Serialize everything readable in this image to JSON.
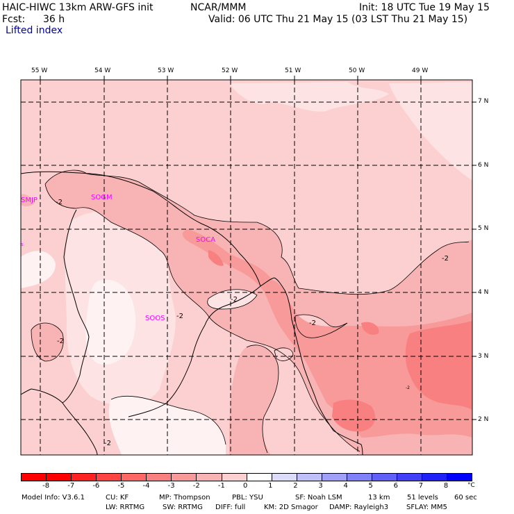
{
  "header": {
    "model": "HAIC-HIWC 13km ARW-GFS init",
    "center": "NCAR/MMM",
    "init": "Init: 18 UTC Tue 19 May 15",
    "fcst_label": "Fcst:",
    "fcst_value": "36 h",
    "valid": "Valid: 06 UTC Thu 21 May 15 (03 LST Thu 21 May 15)",
    "field": "Lifted index"
  },
  "map": {
    "lon_labels": [
      "55 W",
      "54 W",
      "53 W",
      "52 W",
      "51 W",
      "50 W",
      "49 W"
    ],
    "lat_labels": [
      "7 N",
      "6 N",
      "5 N",
      "4 N",
      "3 N",
      "2 N"
    ],
    "contour_labels": [
      "-2",
      "-2",
      "-2",
      "-2",
      "-2",
      "-2",
      "-2",
      "-2"
    ],
    "stations": [
      "SMJP",
      "SOGM",
      "SOCA",
      "SOOS",
      "s"
    ]
  },
  "colorbar": {
    "ticks": [
      "-8",
      "-7",
      "-6",
      "-5",
      "-4",
      "-3",
      "-2",
      "-1",
      "0",
      "1",
      "2",
      "3",
      "4",
      "5",
      "6",
      "7",
      "8"
    ],
    "unit": "°C",
    "colors": [
      "#ff0000",
      "#ff2222",
      "#ff4444",
      "#ff6666",
      "#f98080",
      "#f89a9a",
      "#f8b4b4",
      "#fcd0d0",
      "#ffffff",
      "#dcdcfa",
      "#c0c0f8",
      "#a0a0f8",
      "#8080f8",
      "#6060f8",
      "#4040f8",
      "#2020f8",
      "#0000ff"
    ]
  },
  "footer": {
    "line1": [
      "Model Info: V3.6.1",
      "CU: KF",
      "MP: Thompson",
      "PBL: YSU",
      "SF: Noah LSM",
      "13 km",
      "51 levels",
      "60 sec"
    ],
    "line2": [
      "LW: RRTMG",
      "SW: RRTMG",
      "DIFF: full",
      "KM: 2D Smagor",
      "DAMP: Rayleigh3",
      "SFLAY: MM5"
    ]
  }
}
